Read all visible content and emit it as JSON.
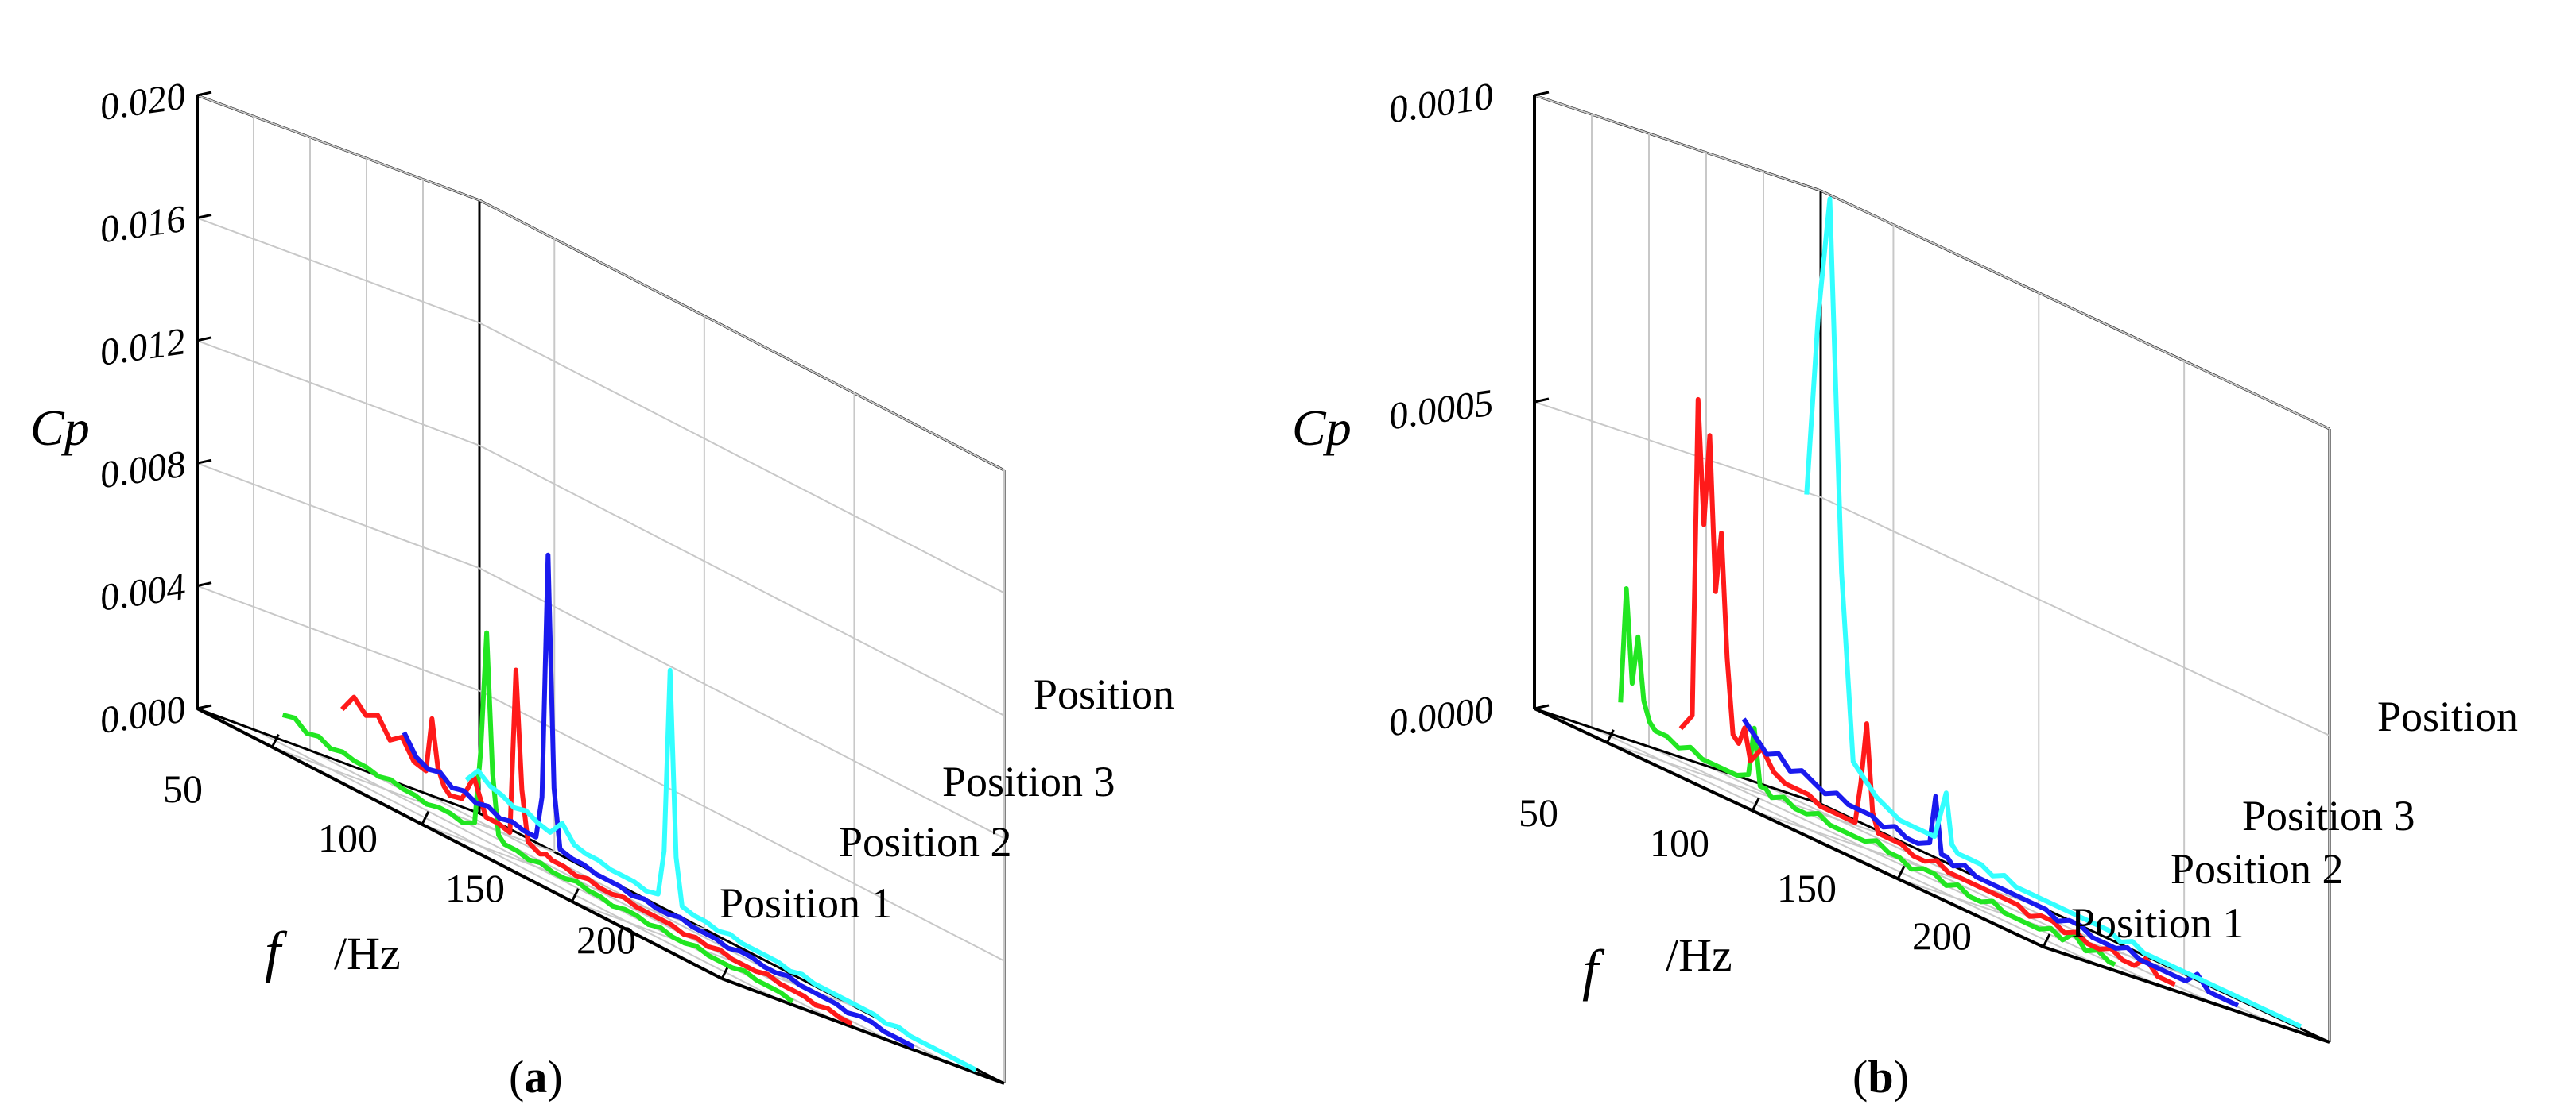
{
  "chart_data": [
    {
      "panel": "a",
      "caption": {
        "open": "(",
        "letter": "a",
        "close": ")"
      },
      "type": "line",
      "projection": "3d-waterfall",
      "zlabel": "Cp",
      "xlabel_symbol": "f",
      "xlabel_unit": "/Hz",
      "xlim": [
        25,
        200
      ],
      "x_ticks": [
        "50",
        "100",
        "150",
        "200"
      ],
      "zlim": [
        0,
        0.02
      ],
      "z_ticks": [
        "0.000",
        "0.004",
        "0.008",
        "0.012",
        "0.016",
        "0.020"
      ],
      "colors": [
        "#22e622",
        "#ff1a1a",
        "#1a1aee",
        "#33ffff"
      ],
      "series": [
        {
          "name": "Position 1",
          "x": [
            30,
            34,
            38,
            42,
            46,
            50,
            54,
            58,
            62,
            66,
            70,
            74,
            78,
            82,
            86,
            90,
            94,
            96,
            98,
            100,
            102,
            104,
            108,
            112,
            116,
            120,
            124,
            128,
            132,
            136,
            140,
            144,
            148,
            152,
            156,
            160,
            164,
            168,
            172,
            176,
            180,
            184,
            188,
            192,
            196,
            200
          ],
          "values": [
            0.0009,
            0.001,
            0.0007,
            0.0008,
            0.0006,
            0.0007,
            0.0006,
            0.0006,
            0.0005,
            0.0006,
            0.0005,
            0.0005,
            0.0004,
            0.0005,
            0.0005,
            0.0004,
            0.0006,
            0.003,
            0.007,
            0.0025,
            0.0006,
            0.0004,
            0.0004,
            0.0003,
            0.0004,
            0.0003,
            0.0003,
            0.0004,
            0.0003,
            0.0003,
            0.0002,
            0.0003,
            0.0003,
            0.0002,
            0.0003,
            0.0002,
            0.0002,
            0.0003,
            0.0002,
            0.0002,
            0.0002,
            0.0003,
            0.0002,
            0.0002,
            0.0002,
            0.0001
          ]
        },
        {
          "name": "Position 2",
          "x": [
            30,
            34,
            38,
            42,
            46,
            50,
            54,
            58,
            60,
            62,
            64,
            66,
            70,
            74,
            78,
            82,
            86,
            88,
            90,
            92,
            94,
            96,
            98,
            100,
            104,
            108,
            112,
            116,
            120,
            124,
            128,
            132,
            136,
            140,
            144,
            148,
            152,
            156,
            160,
            164,
            168,
            172,
            176,
            180,
            184,
            188,
            192,
            196,
            200
          ],
          "values": [
            0.0018,
            0.0024,
            0.002,
            0.0022,
            0.0016,
            0.0019,
            0.0013,
            0.0012,
            0.003,
            0.0015,
            0.001,
            0.0008,
            0.0009,
            0.0018,
            0.0007,
            0.0007,
            0.0006,
            0.006,
            0.0022,
            0.0006,
            0.0005,
            0.0004,
            0.0005,
            0.0004,
            0.0004,
            0.0003,
            0.0004,
            0.0003,
            0.0003,
            0.0004,
            0.0003,
            0.0003,
            0.0003,
            0.0003,
            0.0002,
            0.0003,
            0.0002,
            0.0003,
            0.0002,
            0.0002,
            0.0002,
            0.0003,
            0.0002,
            0.0002,
            0.0002,
            0.0001,
            0.0002,
            0.0001,
            0.0001
          ]
        },
        {
          "name": "Position 3",
          "x": [
            30,
            34,
            38,
            42,
            46,
            50,
            54,
            58,
            62,
            66,
            70,
            74,
            76,
            78,
            80,
            82,
            86,
            90,
            94,
            98,
            102,
            106,
            110,
            114,
            118,
            122,
            126,
            130,
            134,
            138,
            142,
            146,
            150,
            154,
            158,
            162,
            166,
            170,
            174,
            178,
            182,
            186,
            190,
            194,
            198,
            200
          ],
          "values": [
            0.0018,
            0.0012,
            0.001,
            0.0011,
            0.0008,
            0.0009,
            0.0007,
            0.0008,
            0.0006,
            0.0007,
            0.0006,
            0.0006,
            0.002,
            0.01,
            0.0025,
            0.0006,
            0.0005,
            0.0005,
            0.0004,
            0.0004,
            0.0004,
            0.0003,
            0.0004,
            0.0003,
            0.0003,
            0.0004,
            0.0003,
            0.0003,
            0.0003,
            0.0002,
            0.0003,
            0.0003,
            0.0002,
            0.0002,
            0.0003,
            0.0002,
            0.0002,
            0.0002,
            0.0002,
            0.0001,
            0.0002,
            0.0002,
            0.0001,
            0.0001,
            0.0001,
            0.0001
          ]
        },
        {
          "name": "Position",
          "x": [
            30,
            34,
            38,
            42,
            46,
            50,
            54,
            58,
            62,
            66,
            70,
            74,
            78,
            82,
            86,
            90,
            94,
            96,
            98,
            100,
            102,
            106,
            110,
            114,
            118,
            122,
            126,
            130,
            134,
            138,
            142,
            146,
            150,
            154,
            158,
            162,
            166,
            170,
            174,
            178,
            182,
            186,
            190,
            194,
            198,
            200
          ],
          "values": [
            0.001,
            0.0015,
            0.0012,
            0.0011,
            0.0009,
            0.001,
            0.0008,
            0.0007,
            0.0012,
            0.0007,
            0.0006,
            0.0006,
            0.0005,
            0.0005,
            0.0005,
            0.0004,
            0.0005,
            0.002,
            0.008,
            0.002,
            0.0005,
            0.0004,
            0.0004,
            0.0003,
            0.0004,
            0.0003,
            0.0003,
            0.0003,
            0.0003,
            0.0002,
            0.0003,
            0.0002,
            0.0002,
            0.0002,
            0.0002,
            0.0002,
            0.0002,
            0.0001,
            0.0002,
            0.0001,
            0.0001,
            0.0001,
            0.0001,
            0.0001,
            0.0001,
            0.0001
          ]
        }
      ]
    },
    {
      "panel": "b",
      "caption": {
        "open": "(",
        "letter": "b",
        "close": ")"
      },
      "type": "line",
      "projection": "3d-waterfall",
      "zlabel": "Cp",
      "xlabel_symbol": "f",
      "xlabel_unit": "/Hz",
      "xlim": [
        25,
        200
      ],
      "x_ticks": [
        "50",
        "100",
        "150",
        "200"
      ],
      "zlim": [
        0,
        0.001
      ],
      "z_ticks": [
        "0.0000",
        "0.0005",
        "0.0010"
      ],
      "colors": [
        "#22e622",
        "#ff1a1a",
        "#1a1aee",
        "#33ffff"
      ],
      "series": [
        {
          "name": "Position 1",
          "x": [
            30,
            32,
            34,
            36,
            38,
            40,
            42,
            46,
            50,
            54,
            58,
            62,
            66,
            70,
            74,
            76,
            78,
            80,
            82,
            86,
            90,
            94,
            98,
            102,
            106,
            110,
            114,
            118,
            122,
            126,
            130,
            134,
            138,
            142,
            146,
            150,
            154,
            158,
            162,
            166,
            170,
            174,
            178,
            182,
            186,
            190,
            194,
            198,
            200
          ],
          "values": [
            6e-05,
            0.00025,
            0.0001,
            0.00018,
            8e-05,
            5e-05,
            4e-05,
            4e-05,
            3e-05,
            4e-05,
            3e-05,
            3e-05,
            3e-05,
            3e-05,
            4e-05,
            0.00012,
            3e-05,
            3e-05,
            2e-05,
            3e-05,
            2e-05,
            2e-05,
            3e-05,
            2e-05,
            2e-05,
            2e-05,
            2e-05,
            3e-05,
            2e-05,
            2e-05,
            1e-05,
            2e-05,
            2e-05,
            1e-05,
            2e-05,
            1e-05,
            1e-05,
            2e-05,
            1e-05,
            1e-05,
            1e-05,
            1e-05,
            2e-05,
            1e-05,
            3e-05,
            1e-05,
            2e-05,
            1e-05,
            1e-05
          ]
        },
        {
          "name": "Position 2",
          "x": [
            30,
            34,
            36,
            38,
            40,
            42,
            44,
            46,
            48,
            50,
            52,
            54,
            58,
            62,
            66,
            70,
            74,
            78,
            82,
            86,
            90,
            92,
            94,
            96,
            98,
            102,
            106,
            110,
            114,
            118,
            122,
            126,
            130,
            134,
            138,
            142,
            146,
            150,
            154,
            158,
            162,
            166,
            170,
            174,
            178,
            182,
            186,
            190,
            194,
            198,
            200
          ],
          "values": [
            5e-05,
            8e-05,
            0.0006,
            0.0004,
            0.00055,
            0.0003,
            0.0004,
            0.0002,
            8e-05,
            7e-05,
            0.0001,
            5e-05,
            8e-05,
            5e-05,
            4e-05,
            4e-05,
            4e-05,
            3e-05,
            3e-05,
            3e-05,
            3e-05,
            0.0001,
            0.0002,
            6e-05,
            3e-05,
            3e-05,
            3e-05,
            2e-05,
            2e-05,
            3e-05,
            2e-05,
            2e-05,
            2e-05,
            2e-05,
            2e-05,
            2e-05,
            2e-05,
            1e-05,
            2e-05,
            2e-05,
            1e-05,
            2e-05,
            1e-05,
            1e-05,
            2e-05,
            1e-05,
            1e-05,
            3e-05,
            1e-05,
            1e-05,
            1e-05
          ]
        },
        {
          "name": "Position 3",
          "x": [
            30,
            34,
            38,
            42,
            46,
            50,
            54,
            58,
            62,
            66,
            70,
            74,
            78,
            82,
            86,
            90,
            94,
            96,
            98,
            100,
            102,
            106,
            110,
            114,
            118,
            122,
            126,
            130,
            134,
            138,
            142,
            146,
            150,
            154,
            158,
            162,
            166,
            170,
            174,
            178,
            182,
            186,
            190,
            194,
            198,
            200
          ],
          "values": [
            0.0001,
            8e-05,
            6e-05,
            7e-05,
            5e-05,
            6e-05,
            5e-05,
            4e-05,
            5e-05,
            4e-05,
            4e-05,
            4e-05,
            3e-05,
            4e-05,
            3e-05,
            3e-05,
            4e-05,
            0.00012,
            3e-05,
            3e-05,
            2e-05,
            3e-05,
            2e-05,
            2e-05,
            2e-05,
            2e-05,
            2e-05,
            2e-05,
            2e-05,
            1e-05,
            2e-05,
            2e-05,
            1e-05,
            1e-05,
            1e-05,
            2e-05,
            1e-05,
            1e-05,
            1e-05,
            1e-05,
            1e-05,
            3e-05,
            1e-05,
            1e-05,
            1e-05,
            1e-05
          ]
        },
        {
          "name": "Position",
          "x": [
            30,
            34,
            38,
            42,
            46,
            50,
            54,
            58,
            62,
            66,
            70,
            74,
            76,
            78,
            80,
            82,
            86,
            90,
            94,
            98,
            102,
            106,
            110,
            114,
            118,
            122,
            126,
            130,
            134,
            138,
            142,
            146,
            150,
            154,
            158,
            162,
            166,
            170,
            174,
            178,
            182,
            186,
            190,
            194,
            198,
            200
          ],
          "values": [
            0.0005,
            0.0008,
            0.001,
            0.0004,
            0.0001,
            8e-05,
            6e-05,
            5e-05,
            4e-05,
            4e-05,
            4e-05,
            4e-05,
            8e-05,
            0.00012,
            4e-05,
            3e-05,
            3e-05,
            3e-05,
            2e-05,
            3e-05,
            2e-05,
            2e-05,
            2e-05,
            2e-05,
            2e-05,
            2e-05,
            2e-05,
            2e-05,
            2e-05,
            1e-05,
            2e-05,
            1e-05,
            1e-05,
            1e-05,
            1e-05,
            1e-05,
            1e-05,
            1e-05,
            1e-05,
            1e-05,
            1e-05,
            1e-05,
            1e-05,
            1e-05,
            1e-05,
            1e-05
          ]
        }
      ]
    }
  ]
}
